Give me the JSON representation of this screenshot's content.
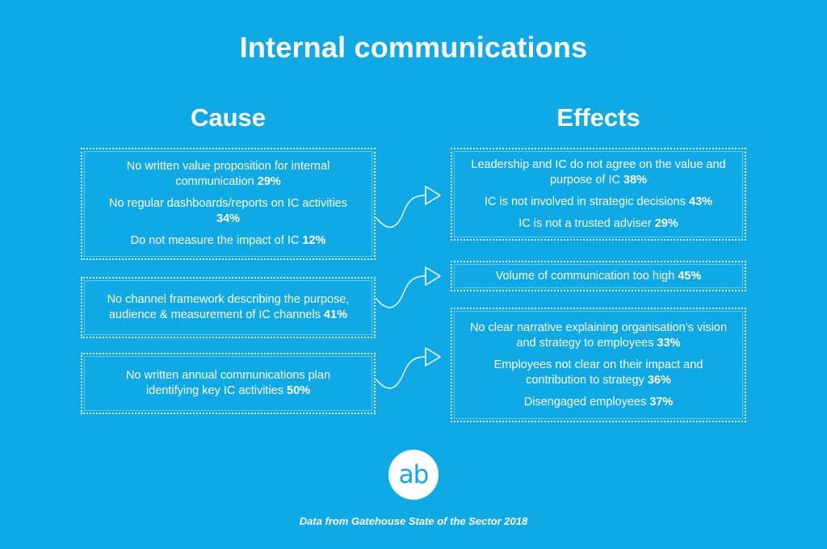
{
  "title": "Internal communications",
  "cause_heading": "Cause",
  "effects_heading": "Effects",
  "causes": [
    {
      "items": [
        {
          "text": "No written value proposition for internal communication",
          "pct": "29%"
        },
        {
          "text": "No regular dashboards/reports on IC activities",
          "pct": "34%"
        },
        {
          "text": "Do not measure the impact of IC",
          "pct": "12%"
        }
      ]
    },
    {
      "items": [
        {
          "text": "No channel framework describing the purpose, audience & measurement of IC channels",
          "pct": "41%"
        }
      ]
    },
    {
      "items": [
        {
          "text": "No written annual communications plan identifying key IC activities",
          "pct": "50%"
        }
      ]
    }
  ],
  "effects": [
    {
      "items": [
        {
          "text": "Leadership and IC do not agree on the value and purpose of IC",
          "pct": "38%"
        },
        {
          "text": "IC is not involved in strategic decisions",
          "pct": "43%"
        },
        {
          "text": "IC is not a trusted adviser",
          "pct": "29%"
        }
      ]
    },
    {
      "items": [
        {
          "text": "Volume of communication too high",
          "pct": "45%"
        }
      ]
    },
    {
      "items": [
        {
          "text": "No clear narrative explaining organisation’s vision and strategy to employees",
          "pct": "33%"
        },
        {
          "text": "Employees not clear on their impact and contribution to strategy",
          "pct": "36%"
        },
        {
          "text": "Disengaged employees",
          "pct": "37%"
        }
      ]
    }
  ],
  "logo_text": "ab",
  "source": "Data from Gatehouse State of the Sector 2018",
  "colors": {
    "background": "#0fa9e6",
    "foreground": "#ffffff"
  }
}
